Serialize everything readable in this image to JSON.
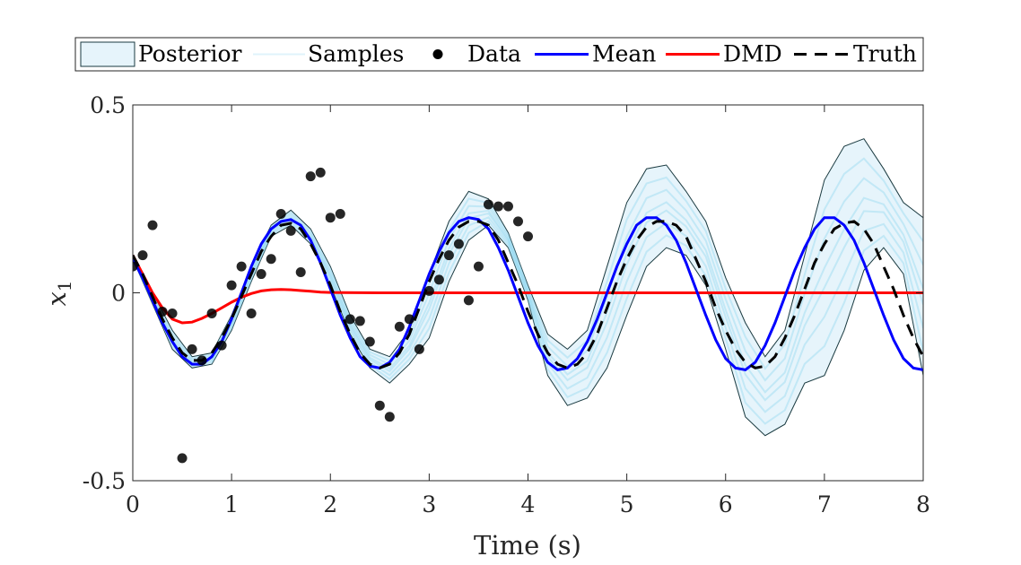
{
  "chart_data": {
    "type": "line",
    "xlabel": "Time (s)",
    "ylabel_main": "x",
    "ylabel_sub": "1",
    "xlim": [
      0,
      8
    ],
    "ylim": [
      -0.5,
      0.5
    ],
    "xticks": [
      0,
      1,
      2,
      3,
      4,
      5,
      6,
      7,
      8
    ],
    "xtick_labels": [
      "0",
      "1",
      "2",
      "3",
      "4",
      "5",
      "6",
      "7",
      "8"
    ],
    "yticks": [
      -0.5,
      0,
      0.5
    ],
    "ytick_labels": [
      "-0.5",
      "0",
      "0.5"
    ],
    "grid": false,
    "legend_position": "top",
    "legend": [
      {
        "label": "Posterior",
        "kind": "patch"
      },
      {
        "label": "Samples",
        "kind": "faint-line"
      },
      {
        "label": "Data",
        "kind": "marker"
      },
      {
        "label": "Mean",
        "kind": "line"
      },
      {
        "label": "DMD",
        "kind": "line"
      },
      {
        "label": "Truth",
        "kind": "dashed"
      }
    ],
    "colors": {
      "posterior_fill": "#e6f4fb",
      "posterior_edge": "#1a3a40",
      "samples": "#7fd0ee",
      "data": "#000000",
      "mean": "#0000ff",
      "dmd": "#ff0000",
      "truth": "#000000"
    },
    "data_points": [
      {
        "x": 0.0,
        "y": 0.07
      },
      {
        "x": 0.1,
        "y": 0.1
      },
      {
        "x": 0.2,
        "y": 0.18
      },
      {
        "x": 0.3,
        "y": -0.05
      },
      {
        "x": 0.4,
        "y": -0.055
      },
      {
        "x": 0.5,
        "y": -0.44
      },
      {
        "x": 0.6,
        "y": -0.15
      },
      {
        "x": 0.7,
        "y": -0.18
      },
      {
        "x": 0.8,
        "y": -0.055
      },
      {
        "x": 0.9,
        "y": -0.14
      },
      {
        "x": 1.0,
        "y": 0.02
      },
      {
        "x": 1.1,
        "y": 0.07
      },
      {
        "x": 1.2,
        "y": -0.055
      },
      {
        "x": 1.3,
        "y": 0.05
      },
      {
        "x": 1.4,
        "y": 0.09
      },
      {
        "x": 1.5,
        "y": 0.21
      },
      {
        "x": 1.6,
        "y": 0.165
      },
      {
        "x": 1.7,
        "y": 0.055
      },
      {
        "x": 1.8,
        "y": 0.31
      },
      {
        "x": 1.9,
        "y": 0.32
      },
      {
        "x": 2.0,
        "y": 0.2
      },
      {
        "x": 2.1,
        "y": 0.21
      },
      {
        "x": 2.2,
        "y": -0.07
      },
      {
        "x": 2.3,
        "y": -0.075
      },
      {
        "x": 2.4,
        "y": -0.13
      },
      {
        "x": 2.5,
        "y": -0.3
      },
      {
        "x": 2.6,
        "y": -0.33
      },
      {
        "x": 2.7,
        "y": -0.09
      },
      {
        "x": 2.8,
        "y": -0.07
      },
      {
        "x": 2.9,
        "y": -0.15
      },
      {
        "x": 3.0,
        "y": 0.005
      },
      {
        "x": 3.1,
        "y": 0.035
      },
      {
        "x": 3.2,
        "y": 0.1
      },
      {
        "x": 3.3,
        "y": 0.13
      },
      {
        "x": 3.4,
        "y": -0.02
      },
      {
        "x": 3.5,
        "y": 0.07
      },
      {
        "x": 3.6,
        "y": 0.235
      },
      {
        "x": 3.7,
        "y": 0.23
      },
      {
        "x": 3.8,
        "y": 0.23
      },
      {
        "x": 3.9,
        "y": 0.19
      },
      {
        "x": 4.0,
        "y": 0.15
      }
    ],
    "mean": {
      "x": [
        0,
        0.1,
        0.2,
        0.3,
        0.4,
        0.5,
        0.6,
        0.7,
        0.8,
        0.9,
        1.0,
        1.1,
        1.2,
        1.3,
        1.4,
        1.5,
        1.6,
        1.7,
        1.8,
        1.9,
        2.0,
        2.1,
        2.2,
        2.3,
        2.4,
        2.5,
        2.6,
        2.7,
        2.8,
        2.9,
        3.0,
        3.1,
        3.2,
        3.3,
        3.4,
        3.5,
        3.6,
        3.7,
        3.8,
        3.9,
        4.0,
        4.1,
        4.2,
        4.3,
        4.4,
        4.5,
        4.6,
        4.7,
        4.8,
        4.9,
        5.0,
        5.1,
        5.2,
        5.3,
        5.4,
        5.5,
        5.6,
        5.7,
        5.8,
        5.9,
        6.0,
        6.1,
        6.2,
        6.3,
        6.4,
        6.5,
        6.6,
        6.7,
        6.8,
        6.9,
        7.0,
        7.1,
        7.2,
        7.3,
        7.4,
        7.5,
        7.6,
        7.7,
        7.8,
        7.9,
        8.0
      ],
      "y": [
        0.09,
        0.04,
        -0.02,
        -0.08,
        -0.13,
        -0.17,
        -0.19,
        -0.19,
        -0.17,
        -0.13,
        -0.07,
        0.0,
        0.07,
        0.13,
        0.17,
        0.19,
        0.195,
        0.18,
        0.14,
        0.08,
        0.01,
        -0.06,
        -0.12,
        -0.17,
        -0.195,
        -0.2,
        -0.185,
        -0.15,
        -0.09,
        -0.02,
        0.05,
        0.11,
        0.16,
        0.19,
        0.2,
        0.195,
        0.17,
        0.12,
        0.06,
        -0.01,
        -0.08,
        -0.14,
        -0.185,
        -0.205,
        -0.2,
        -0.175,
        -0.13,
        -0.07,
        0.0,
        0.07,
        0.13,
        0.18,
        0.2,
        0.2,
        0.18,
        0.14,
        0.08,
        0.01,
        -0.06,
        -0.125,
        -0.175,
        -0.2,
        -0.205,
        -0.185,
        -0.14,
        -0.08,
        -0.01,
        0.06,
        0.12,
        0.17,
        0.2,
        0.2,
        0.18,
        0.14,
        0.08,
        0.01,
        -0.06,
        -0.125,
        -0.175,
        -0.2,
        -0.205
      ]
    },
    "truth": {
      "x": [
        0,
        0.1,
        0.2,
        0.3,
        0.4,
        0.5,
        0.6,
        0.7,
        0.8,
        0.9,
        1.0,
        1.1,
        1.2,
        1.3,
        1.4,
        1.5,
        1.6,
        1.7,
        1.8,
        1.9,
        2.0,
        2.1,
        2.2,
        2.3,
        2.4,
        2.5,
        2.6,
        2.7,
        2.8,
        2.9,
        3.0,
        3.1,
        3.2,
        3.3,
        3.4,
        3.5,
        3.6,
        3.7,
        3.8,
        3.9,
        4.0,
        4.1,
        4.2,
        4.3,
        4.4,
        4.5,
        4.6,
        4.7,
        4.8,
        4.9,
        5.0,
        5.1,
        5.2,
        5.3,
        5.4,
        5.5,
        5.6,
        5.7,
        5.8,
        5.9,
        6.0,
        6.1,
        6.2,
        6.3,
        6.4,
        6.5,
        6.6,
        6.7,
        6.8,
        6.9,
        7.0,
        7.1,
        7.2,
        7.3,
        7.4,
        7.5,
        7.6,
        7.7,
        7.8,
        7.9,
        8.0
      ],
      "y": [
        0.1,
        0.05,
        -0.01,
        -0.07,
        -0.12,
        -0.16,
        -0.18,
        -0.18,
        -0.16,
        -0.12,
        -0.07,
        -0.01,
        0.05,
        0.11,
        0.15,
        0.18,
        0.185,
        0.17,
        0.13,
        0.08,
        0.02,
        -0.05,
        -0.11,
        -0.16,
        -0.19,
        -0.2,
        -0.19,
        -0.16,
        -0.11,
        -0.04,
        0.03,
        0.09,
        0.14,
        0.175,
        0.19,
        0.19,
        0.18,
        0.14,
        0.08,
        0.02,
        -0.05,
        -0.11,
        -0.16,
        -0.19,
        -0.2,
        -0.19,
        -0.16,
        -0.11,
        -0.04,
        0.03,
        0.09,
        0.14,
        0.175,
        0.19,
        0.19,
        0.18,
        0.15,
        0.09,
        0.03,
        -0.04,
        -0.1,
        -0.15,
        -0.185,
        -0.2,
        -0.195,
        -0.17,
        -0.12,
        -0.06,
        0.01,
        0.08,
        0.13,
        0.17,
        0.185,
        0.19,
        0.17,
        0.13,
        0.07,
        0.01,
        -0.06,
        -0.12,
        -0.17
      ]
    },
    "dmd": {
      "x": [
        0,
        0.1,
        0.2,
        0.3,
        0.4,
        0.5,
        0.6,
        0.7,
        0.8,
        0.9,
        1.0,
        1.1,
        1.2,
        1.3,
        1.4,
        1.5,
        1.6,
        1.7,
        1.8,
        1.9,
        2.0,
        2.5,
        3.0,
        4.0,
        5.0,
        6.0,
        7.0,
        8.0
      ],
      "y": [
        0.1,
        0.05,
        0.0,
        -0.04,
        -0.07,
        -0.08,
        -0.078,
        -0.068,
        -0.055,
        -0.04,
        -0.025,
        -0.012,
        -0.002,
        0.005,
        0.008,
        0.009,
        0.008,
        0.006,
        0.004,
        0.002,
        0.001,
        0.0,
        0.0,
        0.0,
        0.0,
        0.0,
        0.0,
        0.0
      ]
    },
    "posterior": {
      "x": [
        0,
        0.2,
        0.4,
        0.6,
        0.8,
        1.0,
        1.2,
        1.4,
        1.6,
        1.8,
        2.0,
        2.2,
        2.4,
        2.6,
        2.8,
        3.0,
        3.2,
        3.4,
        3.6,
        3.8,
        4.0,
        4.2,
        4.4,
        4.6,
        4.8,
        5.0,
        5.2,
        5.4,
        5.6,
        5.8,
        6.0,
        6.2,
        6.4,
        6.6,
        6.8,
        7.0,
        7.2,
        7.4,
        7.6,
        7.8,
        8.0
      ],
      "upper": [
        0.1,
        0.0,
        -0.1,
        -0.17,
        -0.16,
        -0.06,
        0.07,
        0.18,
        0.22,
        0.17,
        0.07,
        -0.06,
        -0.15,
        -0.17,
        -0.1,
        0.05,
        0.19,
        0.27,
        0.25,
        0.16,
        0.02,
        -0.11,
        -0.15,
        -0.1,
        0.07,
        0.24,
        0.33,
        0.34,
        0.27,
        0.19,
        0.04,
        -0.08,
        -0.17,
        -0.1,
        0.1,
        0.3,
        0.39,
        0.41,
        0.33,
        0.24,
        0.2
      ],
      "lower": [
        0.09,
        -0.03,
        -0.15,
        -0.2,
        -0.19,
        -0.1,
        0.03,
        0.15,
        0.18,
        0.13,
        0.02,
        -0.11,
        -0.2,
        -0.24,
        -0.19,
        -0.12,
        0.03,
        0.14,
        0.18,
        0.12,
        -0.02,
        -0.22,
        -0.3,
        -0.28,
        -0.2,
        -0.06,
        0.07,
        0.12,
        0.1,
        0.02,
        -0.15,
        -0.33,
        -0.38,
        -0.35,
        -0.24,
        -0.22,
        -0.1,
        0.06,
        0.12,
        0.05,
        -0.22
      ]
    }
  }
}
